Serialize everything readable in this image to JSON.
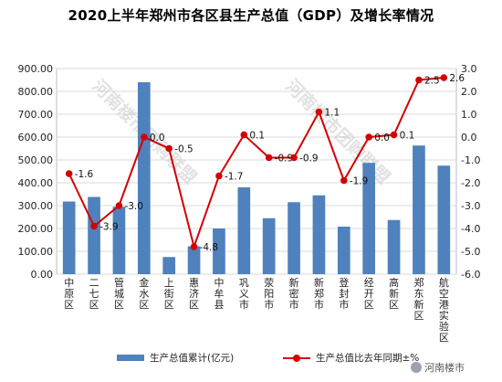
{
  "title": "2020上半年郑州市各区县生产总值（GDP）及增长率情况",
  "chart_data": {
    "type": "bar+line",
    "categories": [
      "中原区",
      "二七区",
      "管城区",
      "金水区",
      "上街区",
      "惠济区",
      "中牟县",
      "巩义市",
      "荥阳市",
      "新密市",
      "新郑市",
      "登封市",
      "经开区",
      "高新区",
      "郑东新区",
      "航空港实验区"
    ],
    "series": [
      {
        "name": "生产总值累计(亿元)",
        "type": "bar",
        "axis": "left",
        "color": "#4f81bd",
        "values": [
          318,
          338,
          295,
          840,
          75,
          122,
          200,
          380,
          245,
          315,
          345,
          208,
          487,
          237,
          563,
          475
        ]
      },
      {
        "name": "生产总值比去年同期±%",
        "type": "line",
        "axis": "right",
        "color": "#d40000",
        "values": [
          -1.6,
          -3.9,
          -3.0,
          0.0,
          -0.5,
          -4.8,
          -1.7,
          0.1,
          -0.9,
          -0.9,
          1.1,
          -1.9,
          0.0,
          0.1,
          2.5,
          2.6
        ],
        "labels": [
          "-1.6",
          "-3.9",
          "-3.0",
          "0.0",
          "-0.5",
          "-4.8",
          "-1.7",
          "0.1",
          "-0.9",
          "-0.9",
          "1.1",
          "-1.9",
          "0.0",
          "0.1",
          "2.5",
          "2.6"
        ]
      }
    ],
    "y_left": {
      "ylim": [
        0,
        900
      ],
      "ticks": [
        "0.00",
        "100.00",
        "200.00",
        "300.00",
        "400.00",
        "500.00",
        "600.00",
        "700.00",
        "800.00",
        "900.00"
      ]
    },
    "y_right": {
      "ylim": [
        -6,
        3
      ],
      "ticks": [
        "-6.0",
        "-5.0",
        "-4.0",
        "-3.0",
        "-2.0",
        "-1.0",
        "0.0",
        "1.0",
        "2.0",
        "3.0"
      ]
    },
    "grid": true,
    "legend_position": "bottom",
    "watermark_text": "河南楼市团购联盟"
  },
  "legend": {
    "bar_label": "生产总值累计(亿元)",
    "line_label": "生产总值比去年同期±%"
  },
  "credit": {
    "text": "河南楼市",
    "icon": "wechat-icon"
  }
}
